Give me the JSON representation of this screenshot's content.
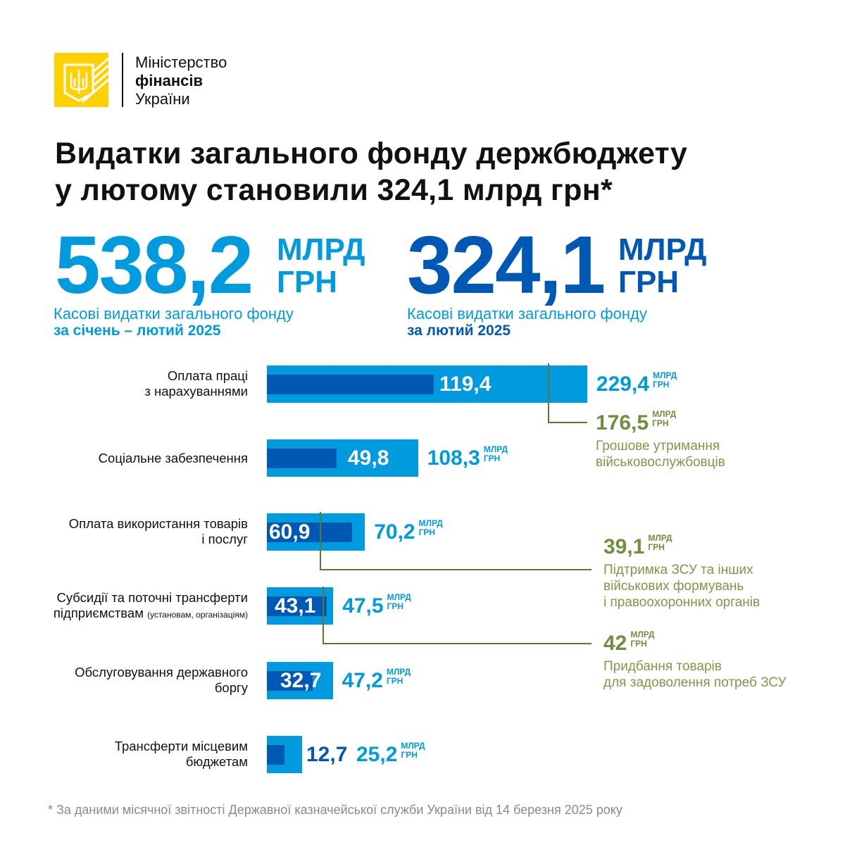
{
  "logo": {
    "line1": "Міністерство",
    "line2": "фінансів",
    "line3": "України"
  },
  "title": {
    "line1": "Видатки загального фонду держбюджету",
    "line2": "у лютому становили 324,1 млрд грн*"
  },
  "kpis": [
    {
      "value": "538,2",
      "unit1": "МЛРД",
      "unit2": "ГРН",
      "desc": "Касові видатки загального фонду",
      "period": "за січень – лютий 2025",
      "color": "#009ade"
    },
    {
      "value": "324,1",
      "unit1": "МЛРД",
      "unit2": "ГРН",
      "desc": "Касові видатки загального фонду",
      "period": "за лютий 2025",
      "color": "#0058b5"
    }
  ],
  "chart_data": {
    "type": "bar",
    "orientation": "horizontal",
    "unit1": "МЛРД",
    "unit2": "ГРН",
    "categories": [
      {
        "line1": "Оплата праці",
        "line2": "з нарахуваннями",
        "note": ""
      },
      {
        "line1": "Соціальне забезпечення",
        "line2": "",
        "note": ""
      },
      {
        "line1": "Оплата використання товарів",
        "line2": "і послуг",
        "note": ""
      },
      {
        "line1": "Субсидії та поточні трансферти",
        "line2": "підприємствам",
        "note": "(установам, організаціям)"
      },
      {
        "line1": "Обслуговування державного",
        "line2": "боргу",
        "note": ""
      },
      {
        "line1": "Трансферти місцевим",
        "line2": "бюджетам",
        "note": ""
      }
    ],
    "series": [
      {
        "name": "за січень – лютий 2025",
        "color": "#009ade",
        "values": [
          229.4,
          108.3,
          70.2,
          47.5,
          47.2,
          25.2
        ],
        "labels": [
          "229,4",
          "108,3",
          "70,2",
          "47,5",
          "47,2",
          "25,2"
        ]
      },
      {
        "name": "за лютий 2025",
        "color": "#0058b5",
        "values": [
          119.4,
          49.8,
          60.9,
          43.1,
          32.7,
          12.7
        ],
        "labels": [
          "119,4",
          "49,8",
          "60,9",
          "43,1",
          "32,7",
          "12,7"
        ]
      }
    ],
    "callouts": [
      {
        "value": "176,5",
        "text1": "Грошове утримання",
        "text2": "військовослужбовців",
        "text3": "",
        "color": "#6f8f3c"
      },
      {
        "value": "39,1",
        "text1": "Підтримка ЗСУ та інших",
        "text2": "військових формувань",
        "text3": "і правоохоронних органів",
        "color": "#6f8f3c"
      },
      {
        "value": "42",
        "text1": "Придбання товарів",
        "text2": "для задоволення потреб ЗСУ",
        "text3": "",
        "color": "#6f8f3c"
      }
    ]
  },
  "footnote": "* За даними місячної звітності Державної казначейської служби України від 14 березня 2025 року"
}
